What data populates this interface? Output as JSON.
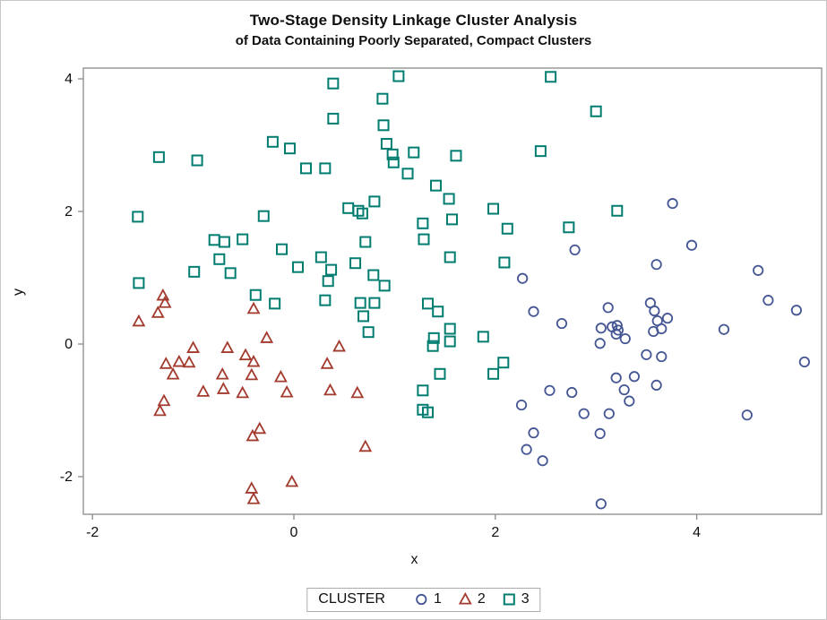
{
  "figure": {
    "title": "Two-Stage Density Linkage Cluster Analysis",
    "subtitle": "of Data Containing Poorly Separated, Compact Clusters",
    "xlabel": "x",
    "ylabel": "y",
    "legend_title": "CLUSTER"
  },
  "colors": {
    "cluster1": "#445694",
    "cluster2": "#A23A2E",
    "cluster3": "#007D70",
    "axis_line": "#8a8a8a",
    "text": "#101010"
  },
  "chart_data": {
    "type": "scatter",
    "title": "Two-Stage Density Linkage Cluster Analysis of Data Containing Poorly Separated, Compact Clusters",
    "xlabel": "x",
    "ylabel": "y",
    "xlim": [
      -2.09,
      5.24
    ],
    "ylim": [
      -2.57,
      4.16
    ],
    "xticks": [
      -2,
      0,
      2,
      4
    ],
    "yticks": [
      -2,
      0,
      2,
      4
    ],
    "grid": false,
    "legend_position": "bottom",
    "legend_title": "CLUSTER",
    "series": [
      {
        "name": "1",
        "marker": "circle",
        "color": "#445694",
        "points": [
          [
            3.76,
            2.12
          ],
          [
            2.79,
            1.42
          ],
          [
            2.27,
            0.99
          ],
          [
            2.38,
            0.49
          ],
          [
            2.66,
            0.31
          ],
          [
            3.95,
            1.49
          ],
          [
            3.6,
            1.2
          ],
          [
            4.61,
            1.11
          ],
          [
            4.71,
            0.66
          ],
          [
            4.99,
            0.51
          ],
          [
            3.12,
            0.55
          ],
          [
            3.54,
            0.62
          ],
          [
            3.58,
            0.5
          ],
          [
            3.61,
            0.35
          ],
          [
            3.71,
            0.39
          ],
          [
            3.65,
            0.23
          ],
          [
            3.57,
            0.19
          ],
          [
            3.05,
            0.24
          ],
          [
            3.16,
            0.26
          ],
          [
            3.21,
            0.28
          ],
          [
            3.22,
            0.21
          ],
          [
            3.2,
            0.15
          ],
          [
            3.04,
            0.01
          ],
          [
            3.29,
            0.08
          ],
          [
            4.27,
            0.22
          ],
          [
            3.5,
            -0.16
          ],
          [
            3.65,
            -0.19
          ],
          [
            5.07,
            -0.27
          ],
          [
            2.54,
            -0.7
          ],
          [
            2.76,
            -0.73
          ],
          [
            2.26,
            -0.92
          ],
          [
            2.38,
            -1.34
          ],
          [
            2.31,
            -1.59
          ],
          [
            2.47,
            -1.76
          ],
          [
            3.2,
            -0.51
          ],
          [
            3.38,
            -0.49
          ],
          [
            3.28,
            -0.69
          ],
          [
            3.6,
            -0.62
          ],
          [
            3.33,
            -0.86
          ],
          [
            2.88,
            -1.05
          ],
          [
            3.13,
            -1.05
          ],
          [
            3.04,
            -1.35
          ],
          [
            4.5,
            -1.07
          ],
          [
            3.05,
            -2.41
          ]
        ]
      },
      {
        "name": "2",
        "marker": "triangle",
        "color": "#A23A2E",
        "points": [
          [
            -1.3,
            0.73
          ],
          [
            -1.28,
            0.62
          ],
          [
            -1.35,
            0.47
          ],
          [
            -1.54,
            0.34
          ],
          [
            -0.4,
            0.53
          ],
          [
            -0.27,
            0.09
          ],
          [
            -1.0,
            -0.06
          ],
          [
            -0.66,
            -0.06
          ],
          [
            -0.48,
            -0.17
          ],
          [
            -0.4,
            -0.27
          ],
          [
            -0.42,
            -0.47
          ],
          [
            -1.27,
            -0.3
          ],
          [
            -1.14,
            -0.27
          ],
          [
            -1.04,
            -0.28
          ],
          [
            -1.2,
            -0.46
          ],
          [
            -0.71,
            -0.46
          ],
          [
            -0.13,
            -0.5
          ],
          [
            -0.07,
            -0.73
          ],
          [
            -0.9,
            -0.72
          ],
          [
            -0.7,
            -0.68
          ],
          [
            -0.51,
            -0.74
          ],
          [
            -1.29,
            -0.86
          ],
          [
            -1.33,
            -1.01
          ],
          [
            -0.34,
            -1.28
          ],
          [
            -0.41,
            -1.39
          ],
          [
            -0.02,
            -2.08
          ],
          [
            -0.42,
            -2.18
          ],
          [
            -0.4,
            -2.34
          ],
          [
            0.33,
            -0.3
          ],
          [
            0.36,
            -0.7
          ],
          [
            0.63,
            -0.74
          ],
          [
            0.71,
            -1.55
          ],
          [
            0.45,
            -0.04
          ]
        ]
      },
      {
        "name": "3",
        "marker": "square",
        "color": "#007D70",
        "points": [
          [
            -1.34,
            2.82
          ],
          [
            -0.96,
            2.77
          ],
          [
            -0.21,
            3.05
          ],
          [
            -0.04,
            2.95
          ],
          [
            0.12,
            2.65
          ],
          [
            0.31,
            2.65
          ],
          [
            0.39,
            3.93
          ],
          [
            0.39,
            3.4
          ],
          [
            1.04,
            4.04
          ],
          [
            2.55,
            4.03
          ],
          [
            0.88,
            3.7
          ],
          [
            0.89,
            3.3
          ],
          [
            0.92,
            3.02
          ],
          [
            0.98,
            2.86
          ],
          [
            0.99,
            2.74
          ],
          [
            1.19,
            2.89
          ],
          [
            1.61,
            2.84
          ],
          [
            2.45,
            2.91
          ],
          [
            1.13,
            2.57
          ],
          [
            1.41,
            2.39
          ],
          [
            1.54,
            2.19
          ],
          [
            -1.55,
            1.92
          ],
          [
            -0.3,
            1.93
          ],
          [
            0.54,
            2.05
          ],
          [
            0.64,
            2.01
          ],
          [
            0.68,
            1.97
          ],
          [
            0.8,
            2.15
          ],
          [
            1.98,
            2.04
          ],
          [
            3.0,
            3.51
          ],
          [
            3.21,
            2.01
          ],
          [
            -0.79,
            1.57
          ],
          [
            -0.69,
            1.54
          ],
          [
            -0.51,
            1.58
          ],
          [
            -0.74,
            1.28
          ],
          [
            -0.12,
            1.43
          ],
          [
            0.27,
            1.31
          ],
          [
            0.04,
            1.16
          ],
          [
            -0.99,
            1.09
          ],
          [
            -0.63,
            1.07
          ],
          [
            -1.54,
            0.92
          ],
          [
            -0.38,
            0.74
          ],
          [
            -0.19,
            0.61
          ],
          [
            0.31,
            0.66
          ],
          [
            0.34,
            0.95
          ],
          [
            0.37,
            1.12
          ],
          [
            1.28,
            1.82
          ],
          [
            1.57,
            1.88
          ],
          [
            0.71,
            1.54
          ],
          [
            1.29,
            1.58
          ],
          [
            0.61,
            1.22
          ],
          [
            1.55,
            1.31
          ],
          [
            0.79,
            1.04
          ],
          [
            0.9,
            0.88
          ],
          [
            0.66,
            0.62
          ],
          [
            0.8,
            0.62
          ],
          [
            0.69,
            0.42
          ],
          [
            0.74,
            0.18
          ],
          [
            1.33,
            0.61
          ],
          [
            1.43,
            0.49
          ],
          [
            1.55,
            0.23
          ],
          [
            1.39,
            0.09
          ],
          [
            1.55,
            0.04
          ],
          [
            1.38,
            -0.03
          ],
          [
            1.88,
            0.11
          ],
          [
            2.12,
            1.74
          ],
          [
            2.73,
            1.76
          ],
          [
            2.09,
            1.23
          ],
          [
            2.08,
            -0.28
          ],
          [
            1.45,
            -0.45
          ],
          [
            1.28,
            -0.7
          ],
          [
            1.28,
            -0.99
          ],
          [
            1.33,
            -1.03
          ],
          [
            1.98,
            -0.45
          ]
        ]
      }
    ]
  }
}
